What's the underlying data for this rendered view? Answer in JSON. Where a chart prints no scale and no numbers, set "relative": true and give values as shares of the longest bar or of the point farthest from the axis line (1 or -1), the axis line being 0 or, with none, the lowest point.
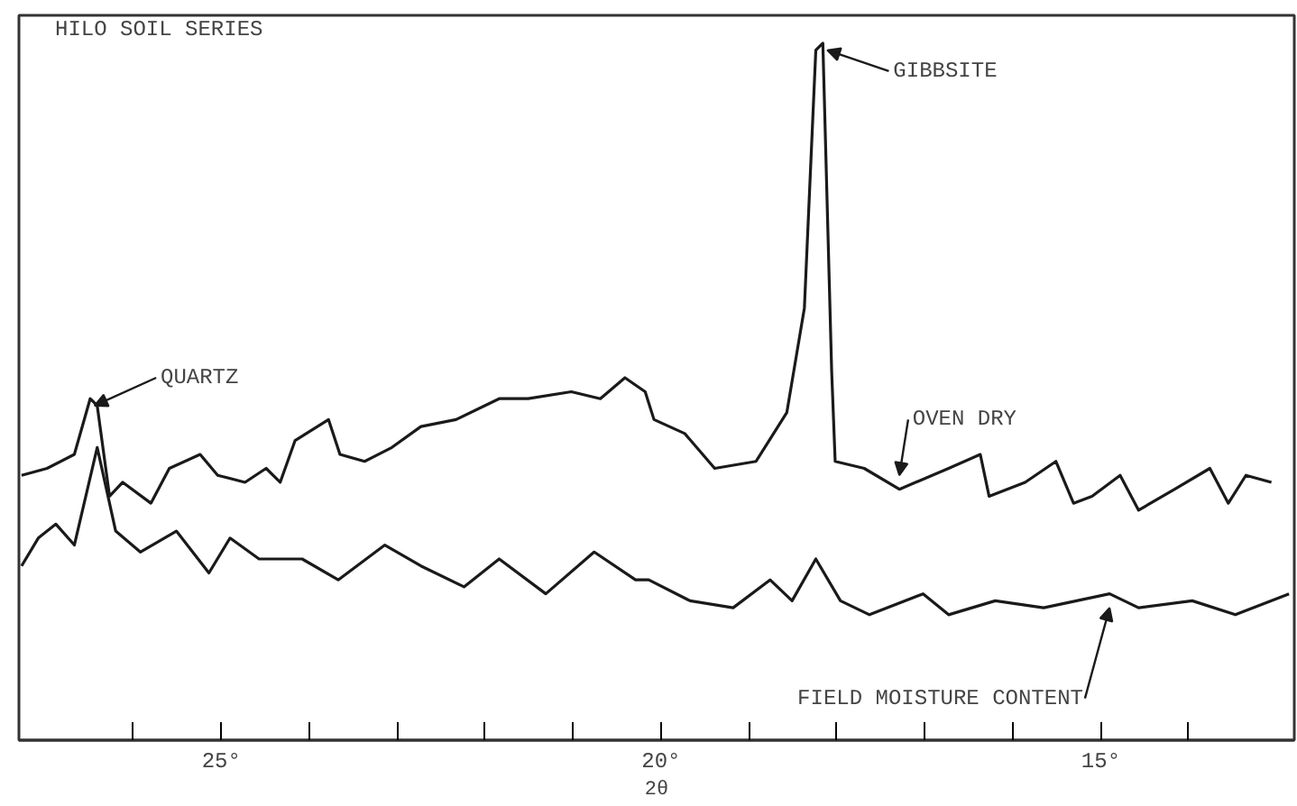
{
  "chart_data": {
    "type": "line",
    "title": "HILO SOIL SERIES",
    "xlabel": "2θ",
    "relative": true,
    "grid": false,
    "marker": "none",
    "line_style": "solid",
    "xlim": [
      27.3,
      12.8
    ],
    "xticks": [
      {
        "value": 26,
        "label": null
      },
      {
        "value": 25,
        "label": "25°"
      },
      {
        "value": 24,
        "label": null
      },
      {
        "value": 23,
        "label": null
      },
      {
        "value": 22,
        "label": null
      },
      {
        "value": 21,
        "label": null
      },
      {
        "value": 20,
        "label": "20°"
      },
      {
        "value": 19,
        "label": null
      },
      {
        "value": 18,
        "label": null
      },
      {
        "value": 17,
        "label": null
      },
      {
        "value": 16,
        "label": null
      },
      {
        "value": 15,
        "label": "15°"
      },
      {
        "value": 14,
        "label": null
      }
    ],
    "annotations": [
      {
        "text": "QUARTZ",
        "x": 26.49,
        "y": 0.49
      },
      {
        "text": "GIBBSITE",
        "x": 18.16,
        "y": 1.0
      }
    ],
    "series": [
      {
        "name": "OVEN DRY",
        "color": "#1a1a1a",
        "x": [
          27.27,
          26.98,
          26.67,
          26.49,
          26.41,
          26.27,
          26.12,
          25.8,
          25.59,
          25.24,
          25.04,
          24.73,
          24.49,
          24.33,
          24.16,
          23.78,
          23.65,
          23.37,
          23.06,
          22.73,
          22.33,
          21.84,
          21.51,
          21.02,
          20.69,
          20.41,
          20.18,
          20.08,
          19.73,
          19.39,
          18.92,
          18.57,
          18.37,
          18.24,
          18.16,
          18.06,
          18.02,
          17.69,
          17.29,
          16.73,
          16.37,
          16.27,
          15.86,
          15.51,
          15.31,
          15.1,
          14.78,
          14.57,
          14.16,
          13.76,
          13.55,
          13.35,
          13.06
        ],
        "values": [
          0.38,
          0.39,
          0.41,
          0.49,
          0.48,
          0.35,
          0.37,
          0.34,
          0.39,
          0.41,
          0.38,
          0.37,
          0.39,
          0.37,
          0.43,
          0.46,
          0.41,
          0.4,
          0.42,
          0.45,
          0.46,
          0.49,
          0.49,
          0.5,
          0.49,
          0.52,
          0.5,
          0.46,
          0.44,
          0.39,
          0.4,
          0.47,
          0.62,
          0.99,
          1.0,
          0.53,
          0.4,
          0.39,
          0.36,
          0.39,
          0.41,
          0.35,
          0.37,
          0.4,
          0.34,
          0.35,
          0.38,
          0.33,
          0.36,
          0.39,
          0.34,
          0.38,
          0.37
        ]
      },
      {
        "name": "FIELD MOISTURE CONTENT",
        "color": "#1a1a1a",
        "x": [
          27.27,
          27.08,
          26.88,
          26.67,
          26.41,
          26.2,
          25.92,
          25.51,
          25.14,
          24.9,
          24.57,
          24.08,
          23.67,
          23.14,
          22.73,
          22.24,
          21.84,
          21.31,
          20.76,
          20.29,
          20.14,
          19.67,
          19.18,
          18.76,
          18.51,
          18.24,
          17.96,
          17.63,
          17.02,
          16.73,
          16.2,
          15.65,
          14.9,
          14.57,
          13.96,
          13.47,
          12.86
        ],
        "values": [
          0.25,
          0.29,
          0.31,
          0.28,
          0.42,
          0.3,
          0.27,
          0.3,
          0.24,
          0.29,
          0.26,
          0.26,
          0.23,
          0.28,
          0.25,
          0.22,
          0.26,
          0.21,
          0.27,
          0.23,
          0.23,
          0.2,
          0.19,
          0.23,
          0.2,
          0.26,
          0.2,
          0.18,
          0.21,
          0.18,
          0.2,
          0.19,
          0.21,
          0.19,
          0.2,
          0.18,
          0.21
        ]
      }
    ]
  }
}
